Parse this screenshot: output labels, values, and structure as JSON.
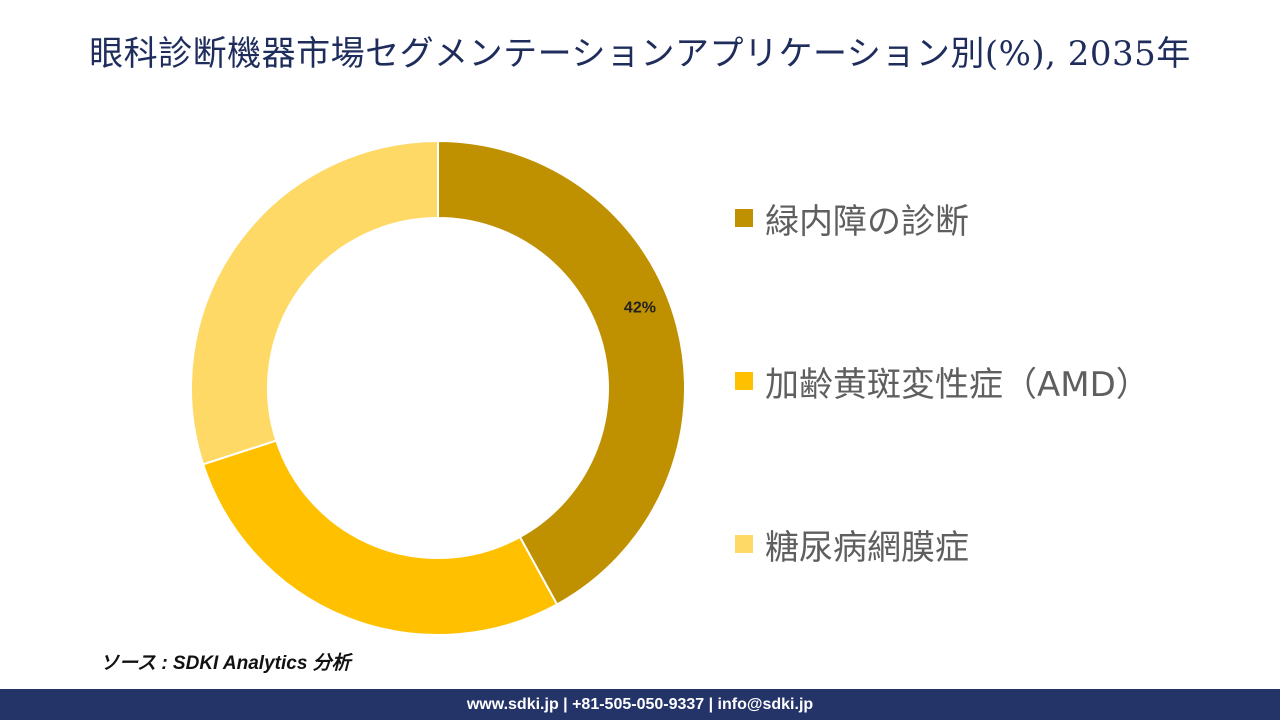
{
  "title": "眼科診断機器市場セグメンテーションアプリケーション別(%), 2035年",
  "chart_data": {
    "type": "pie",
    "title": "眼科診断機器市場セグメンテーションアプリケーション別(%), 2035年",
    "variant": "donut",
    "slices": [
      {
        "label": "緑内障の診断",
        "value": 42,
        "display": "42%",
        "color": "#bf9000"
      },
      {
        "label": "加齢黄斑変性症（AMD）",
        "value": 28,
        "display": "",
        "color": "#ffc000"
      },
      {
        "label": "糖尿病網膜症",
        "value": 30,
        "display": "",
        "color": "#ffd966"
      }
    ],
    "legend_position": "right"
  },
  "source": "ソース : SDKI Analytics 分析",
  "footer": "www.sdki.jp | +81-505-050-9337 | info@sdki.jp"
}
